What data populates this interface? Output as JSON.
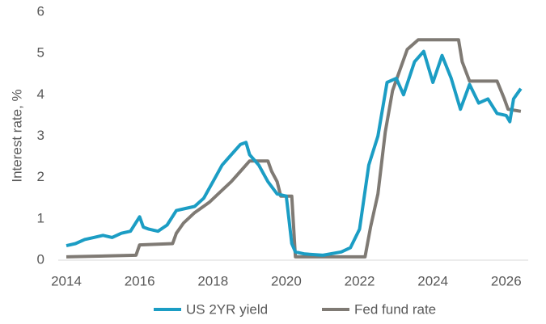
{
  "chart_data": {
    "type": "line",
    "y_label": "Interest rate, %",
    "xlim": [
      2014,
      2026.6
    ],
    "xticks": [
      2014,
      2016,
      2018,
      2020,
      2022,
      2024,
      2026
    ],
    "ylim": [
      0,
      6
    ],
    "yticks": [
      0,
      1,
      2,
      3,
      4,
      5,
      6
    ],
    "legend": "bottom",
    "series": [
      {
        "name": "US 2YR yield",
        "color": "#1b9dc4",
        "x": [
          2014.0,
          2014.25,
          2014.5,
          2014.75,
          2015.0,
          2015.25,
          2015.5,
          2015.75,
          2016.0,
          2016.1,
          2016.25,
          2016.5,
          2016.75,
          2017.0,
          2017.25,
          2017.5,
          2017.75,
          2018.0,
          2018.25,
          2018.5,
          2018.75,
          2018.9,
          2019.0,
          2019.25,
          2019.5,
          2019.75,
          2020.0,
          2020.15,
          2020.25,
          2020.5,
          2021.0,
          2021.5,
          2021.75,
          2022.0,
          2022.25,
          2022.5,
          2022.75,
          2023.0,
          2023.2,
          2023.5,
          2023.75,
          2024.0,
          2024.25,
          2024.5,
          2024.75,
          2025.0,
          2025.25,
          2025.5,
          2025.75,
          2026.0,
          2026.1,
          2026.2,
          2026.4
        ],
        "values": [
          0.35,
          0.4,
          0.5,
          0.55,
          0.6,
          0.55,
          0.65,
          0.7,
          1.05,
          0.8,
          0.75,
          0.7,
          0.85,
          1.2,
          1.25,
          1.3,
          1.5,
          1.9,
          2.3,
          2.55,
          2.8,
          2.85,
          2.55,
          2.3,
          1.9,
          1.6,
          1.55,
          0.4,
          0.2,
          0.15,
          0.12,
          0.2,
          0.3,
          0.75,
          2.3,
          3.0,
          4.3,
          4.4,
          4.0,
          4.8,
          5.05,
          4.3,
          4.95,
          4.4,
          3.65,
          4.25,
          3.8,
          3.9,
          3.55,
          3.5,
          3.35,
          3.9,
          4.15
        ]
      },
      {
        "name": "Fed fund rate",
        "color": "#7f7a74",
        "x": [
          2014.0,
          2015.9,
          2016.0,
          2016.9,
          2017.0,
          2017.2,
          2017.5,
          2017.9,
          2018.2,
          2018.5,
          2018.75,
          2019.0,
          2019.5,
          2019.6,
          2019.75,
          2019.85,
          2020.15,
          2020.25,
          2022.15,
          2022.3,
          2022.5,
          2022.7,
          2022.9,
          2023.1,
          2023.3,
          2023.6,
          2024.7,
          2024.8,
          2025.0,
          2025.75,
          2025.95,
          2026.05,
          2026.4
        ],
        "values": [
          0.08,
          0.12,
          0.37,
          0.4,
          0.65,
          0.9,
          1.15,
          1.4,
          1.65,
          1.9,
          2.15,
          2.4,
          2.4,
          2.15,
          1.9,
          1.55,
          1.55,
          0.08,
          0.08,
          0.8,
          1.6,
          3.1,
          4.1,
          4.6,
          5.1,
          5.33,
          5.33,
          4.8,
          4.33,
          4.33,
          3.9,
          3.65,
          3.6
        ]
      }
    ]
  }
}
